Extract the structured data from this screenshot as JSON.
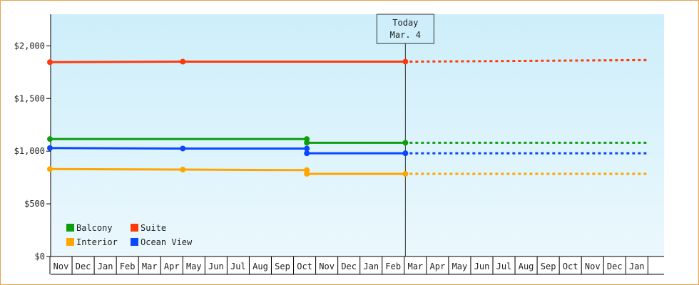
{
  "chart_data": {
    "type": "line",
    "title": "",
    "xlabel": "",
    "ylabel": "",
    "ylim": [
      0,
      2300
    ],
    "y_ticks": [
      {
        "value": 0,
        "label": "$0"
      },
      {
        "value": 500,
        "label": "$500"
      },
      {
        "value": 1000,
        "label": "$1,000"
      },
      {
        "value": 1500,
        "label": "$1,500"
      },
      {
        "value": 2000,
        "label": "$2,000"
      }
    ],
    "x_months": [
      "Nov",
      "Dec",
      "Jan",
      "Feb",
      "Mar",
      "Apr",
      "May",
      "Jun",
      "Jul",
      "Aug",
      "Sep",
      "Oct",
      "Nov",
      "Dec",
      "Jan",
      "Feb",
      "Mar",
      "Apr",
      "May",
      "Jun",
      "Jul",
      "Aug",
      "Sep",
      "Oct",
      "Nov",
      "Dec",
      "Jan"
    ],
    "today": {
      "line1": "Today",
      "line2": "Mar. 4",
      "month_index": 16.05
    },
    "grid": false,
    "legend_position": "bottom-left",
    "series": [
      {
        "name": "Suite",
        "color": "#ff3a0a",
        "points": [
          {
            "x": 0,
            "y": 1845
          },
          {
            "x": 6,
            "y": 1850
          },
          {
            "x": 16.05,
            "y": 1850
          }
        ],
        "projection_end": {
          "x": 27,
          "y": 1865
        }
      },
      {
        "name": "Balcony",
        "color": "#0d9e0d",
        "points": [
          {
            "x": 0,
            "y": 1115
          },
          {
            "x": 11.6,
            "y": 1115
          },
          {
            "x": 11.6,
            "y": 1080
          },
          {
            "x": 16.05,
            "y": 1080
          }
        ],
        "projection_end": {
          "x": 27,
          "y": 1080
        }
      },
      {
        "name": "Ocean View",
        "color": "#0a47ff",
        "points": [
          {
            "x": 0,
            "y": 1030
          },
          {
            "x": 6,
            "y": 1025
          },
          {
            "x": 11.6,
            "y": 1025
          },
          {
            "x": 11.6,
            "y": 980
          },
          {
            "x": 16.05,
            "y": 980
          }
        ],
        "projection_end": {
          "x": 27,
          "y": 980
        }
      },
      {
        "name": "Interior",
        "color": "#ffa500",
        "points": [
          {
            "x": 0,
            "y": 830
          },
          {
            "x": 6,
            "y": 825
          },
          {
            "x": 11.6,
            "y": 820
          },
          {
            "x": 11.6,
            "y": 785
          },
          {
            "x": 16.05,
            "y": 785
          }
        ],
        "projection_end": {
          "x": 27,
          "y": 785
        }
      }
    ],
    "legend_order": [
      "Balcony",
      "Suite",
      "Interior",
      "Ocean View"
    ]
  },
  "colors": {
    "frame_border": "#e8a24e",
    "plot_top": "#cdeefa",
    "plot_bottom": "#ebf8fd"
  }
}
